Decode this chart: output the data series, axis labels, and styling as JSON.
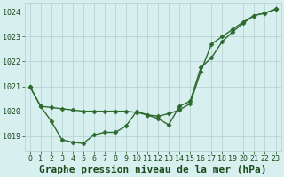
{
  "line1_x": [
    0,
    1,
    2,
    3,
    4,
    5,
    6,
    7,
    8,
    9,
    10,
    11,
    12,
    13,
    14,
    15,
    16,
    17,
    18,
    19,
    20,
    21,
    22,
    23
  ],
  "line1_y": [
    1021.0,
    1020.2,
    1020.15,
    1020.1,
    1020.05,
    1020.0,
    1020.0,
    1020.0,
    1020.0,
    1020.0,
    1019.95,
    1019.85,
    1019.8,
    1019.9,
    1020.05,
    1020.3,
    1021.6,
    1022.7,
    1023.0,
    1023.3,
    1023.6,
    1023.85,
    1023.95,
    1024.1
  ],
  "line2_x": [
    0,
    1,
    2,
    3,
    4,
    5,
    6,
    7,
    8,
    9,
    10,
    11,
    12,
    13,
    14,
    15,
    16,
    17,
    18,
    19,
    20,
    21,
    22,
    23
  ],
  "line2_y": [
    1021.0,
    1020.2,
    1019.6,
    1018.85,
    1018.75,
    1018.7,
    1019.05,
    1019.15,
    1019.15,
    1019.4,
    1020.0,
    1019.85,
    1019.7,
    1019.45,
    1020.2,
    1020.4,
    1021.75,
    1022.15,
    1022.8,
    1023.2,
    1023.55,
    1023.85,
    1023.95,
    1024.1
  ],
  "line_color": "#2d6a2d",
  "marker": "D",
  "marker_size": 2.5,
  "bg_color": "#d8eff0",
  "grid_color": "#b0cece",
  "xlabel": "Graphe pression niveau de la mer (hPa)",
  "xlabel_color": "#1a4a1a",
  "xlim": [
    -0.5,
    23.5
  ],
  "ylim": [
    1018.4,
    1024.35
  ],
  "yticks": [
    1019,
    1020,
    1021,
    1022,
    1023,
    1024
  ],
  "xticks": [
    0,
    1,
    2,
    3,
    4,
    5,
    6,
    7,
    8,
    9,
    10,
    11,
    12,
    13,
    14,
    15,
    16,
    17,
    18,
    19,
    20,
    21,
    22,
    23
  ],
  "tick_color": "#1a4a1a",
  "tick_fontsize": 6.0,
  "xlabel_fontsize": 8.0,
  "line_width": 1.0
}
